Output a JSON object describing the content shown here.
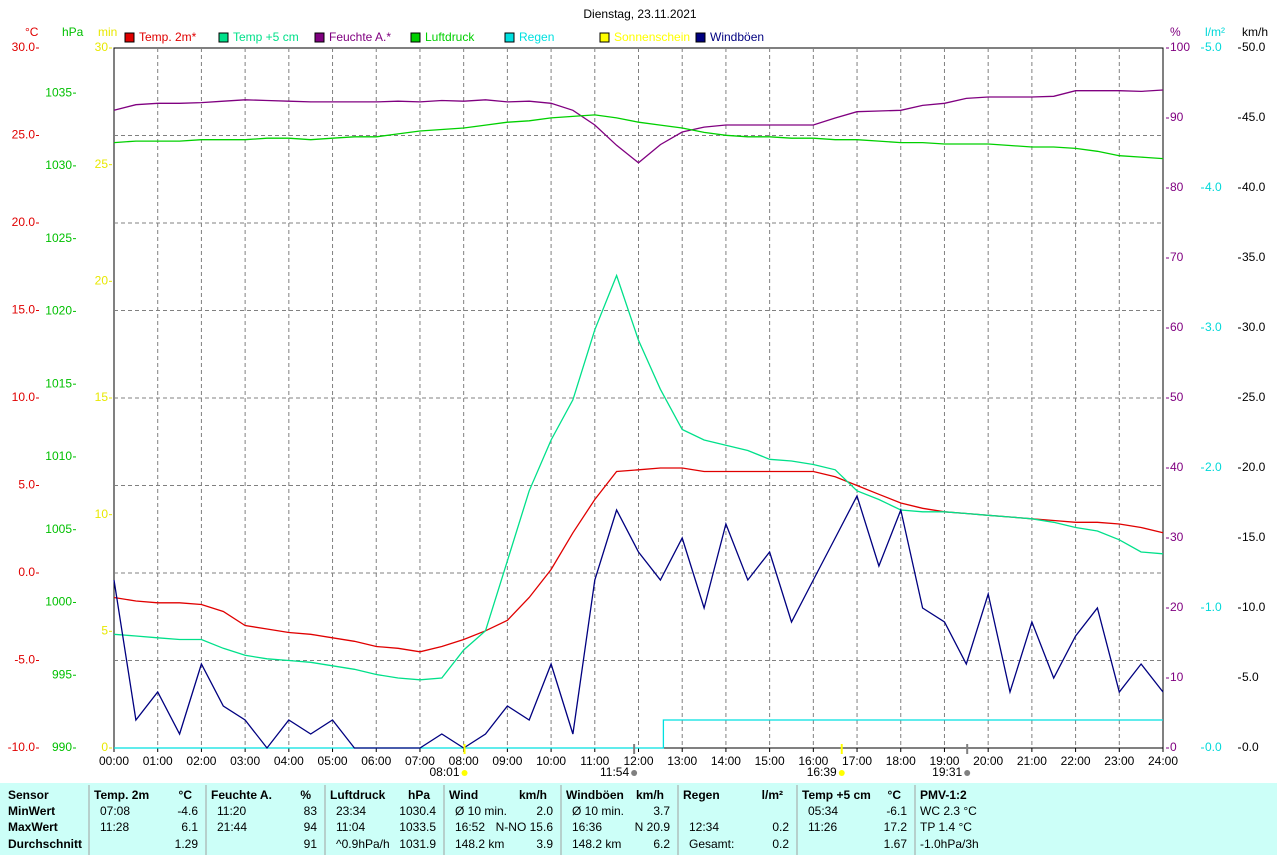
{
  "chart_data": {
    "type": "line",
    "title": "Dienstag, 23.11.2021",
    "x": [
      0,
      0.5,
      1,
      1.5,
      2,
      2.5,
      3,
      3.5,
      4,
      4.5,
      5,
      5.5,
      6,
      6.5,
      7,
      7.5,
      8,
      8.5,
      9,
      9.5,
      10,
      10.5,
      11,
      11.5,
      12,
      12.5,
      13,
      13.5,
      14,
      14.5,
      15,
      15.5,
      16,
      16.5,
      17,
      17.5,
      18,
      18.5,
      19,
      19.5,
      20,
      20.5,
      21,
      21.5,
      22,
      22.5,
      23,
      23.5,
      24
    ],
    "xlim": [
      0,
      24
    ],
    "xticks": [
      {
        "value": 0,
        "label": "00:00"
      },
      {
        "value": 1,
        "label": "01:00"
      },
      {
        "value": 2,
        "label": "02:00"
      },
      {
        "value": 3,
        "label": "03:00"
      },
      {
        "value": 4,
        "label": "04:00"
      },
      {
        "value": 5,
        "label": "05:00"
      },
      {
        "value": 6,
        "label": "06:00"
      },
      {
        "value": 7,
        "label": "07:00"
      },
      {
        "value": 8,
        "label": "08:00"
      },
      {
        "value": 9,
        "label": "09:00"
      },
      {
        "value": 10,
        "label": "10:00"
      },
      {
        "value": 11,
        "label": "11:00"
      },
      {
        "value": 12,
        "label": "12:00"
      },
      {
        "value": 13,
        "label": "13:00"
      },
      {
        "value": 14,
        "label": "14:00"
      },
      {
        "value": 15,
        "label": "15:00"
      },
      {
        "value": 16,
        "label": "16:00"
      },
      {
        "value": 17,
        "label": "17:00"
      },
      {
        "value": 18,
        "label": "18:00"
      },
      {
        "value": 19,
        "label": "19:00"
      },
      {
        "value": 20,
        "label": "20:00"
      },
      {
        "value": 21,
        "label": "21:00"
      },
      {
        "value": 22,
        "label": "22:00"
      },
      {
        "value": 23,
        "label": "23:00"
      },
      {
        "value": 24,
        "label": "24:00"
      }
    ],
    "grid": true,
    "y_axes": [
      {
        "unit": "°C",
        "side": "left",
        "color": "#e00000",
        "lim": [
          -10,
          30
        ],
        "ticks": [
          {
            "value": -10,
            "label": "-10.0"
          },
          {
            "value": -5,
            "label": "-5.0"
          },
          {
            "value": 0,
            "label": "0.0"
          },
          {
            "value": 5,
            "label": "5.0"
          },
          {
            "value": 10,
            "label": "10.0"
          },
          {
            "value": 15,
            "label": "15.0"
          },
          {
            "value": 20,
            "label": "20.0"
          },
          {
            "value": 25,
            "label": "25.0"
          },
          {
            "value": 30,
            "label": "30.0"
          }
        ]
      },
      {
        "unit": "hPa",
        "side": "left",
        "color": "#00c000",
        "lim": [
          990,
          1038.1
        ],
        "ticks": [
          990,
          995,
          1000,
          1005,
          1010,
          1015,
          1020,
          1025,
          1030,
          1035
        ]
      },
      {
        "unit": "min",
        "side": "left",
        "color": "#e8e800",
        "lim": [
          0,
          30
        ],
        "ticks": [
          0,
          5,
          10,
          15,
          20,
          25,
          30
        ]
      },
      {
        "unit": "%",
        "side": "right",
        "color": "#800080",
        "lim": [
          0,
          100
        ],
        "ticks": [
          0,
          10,
          20,
          30,
          40,
          50,
          60,
          70,
          80,
          90,
          100
        ]
      },
      {
        "unit": "l/m²",
        "side": "right",
        "color": "#00d8d8",
        "lim": [
          0,
          5
        ],
        "ticks": [
          {
            "value": 0,
            "label": "0.0"
          },
          {
            "value": 1,
            "label": "1.0"
          },
          {
            "value": 2,
            "label": "2.0"
          },
          {
            "value": 3,
            "label": "3.0"
          },
          {
            "value": 4,
            "label": "4.0"
          },
          {
            "value": 5,
            "label": "5.0"
          }
        ]
      },
      {
        "unit": "km/h",
        "side": "right",
        "color": "#000000",
        "lim": [
          0,
          50
        ],
        "ticks": [
          {
            "value": 0,
            "label": "0.0"
          },
          {
            "value": 5,
            "label": "5.0"
          },
          {
            "value": 10,
            "label": "10.0"
          },
          {
            "value": 15,
            "label": "15.0"
          },
          {
            "value": 20,
            "label": "20.0"
          },
          {
            "value": 25,
            "label": "25.0"
          },
          {
            "value": 30,
            "label": "30.0"
          },
          {
            "value": 35,
            "label": "35.0"
          },
          {
            "value": 40,
            "label": "40.0"
          },
          {
            "value": 45,
            "label": "45.0"
          },
          {
            "value": 50,
            "label": "50.0"
          }
        ]
      }
    ],
    "series": [
      {
        "name": "Temp. 2m*",
        "color": "#e00000",
        "axis": 0,
        "values": [
          -1.4,
          -1.6,
          -1.7,
          -1.7,
          -1.8,
          -2.2,
          -3.0,
          -3.2,
          -3.4,
          -3.5,
          -3.7,
          -3.9,
          -4.2,
          -4.3,
          -4.5,
          -4.2,
          -3.8,
          -3.3,
          -2.7,
          -1.4,
          0.2,
          2.3,
          4.2,
          5.8,
          5.9,
          6.0,
          6.0,
          5.8,
          5.8,
          5.8,
          5.8,
          5.8,
          5.8,
          5.5,
          5.0,
          4.5,
          4.0,
          3.7,
          3.5,
          3.4,
          3.3,
          3.2,
          3.1,
          3.0,
          2.9,
          2.9,
          2.8,
          2.6,
          2.3
        ]
      },
      {
        "name": "Temp +5 cm",
        "color": "#00e08a",
        "axis": 0,
        "values": [
          -3.5,
          -3.6,
          -3.7,
          -3.8,
          -3.8,
          -4.3,
          -4.7,
          -4.9,
          -5.0,
          -5.1,
          -5.3,
          -5.5,
          -5.8,
          -6.0,
          -6.1,
          -6.0,
          -4.4,
          -3.3,
          0.7,
          4.7,
          7.6,
          9.9,
          13.9,
          17.0,
          13.3,
          10.5,
          8.2,
          7.6,
          7.3,
          7.0,
          6.5,
          6.4,
          6.2,
          5.9,
          4.7,
          4.2,
          3.6,
          3.5,
          3.5,
          3.4,
          3.3,
          3.2,
          3.1,
          2.9,
          2.6,
          2.4,
          1.9,
          1.2,
          1.1
        ]
      },
      {
        "name": "Feuchte A.*",
        "color": "#800080",
        "axis": 3,
        "values": [
          91.1,
          91.9,
          92.1,
          92.1,
          92.2,
          92.4,
          92.6,
          92.5,
          92.4,
          92.3,
          92.3,
          92.3,
          92.3,
          92.4,
          92.3,
          92.5,
          92.4,
          92.6,
          92.3,
          92.4,
          92.1,
          91.1,
          89.0,
          86.1,
          83.6,
          86.2,
          88.0,
          88.7,
          89.0,
          89.0,
          89.0,
          89.0,
          89.0,
          90.0,
          90.9,
          91.0,
          91.1,
          91.8,
          92.1,
          92.8,
          93.0,
          93.0,
          93.0,
          93.1,
          93.9,
          93.9,
          93.9,
          93.8,
          94.0
        ]
      },
      {
        "name": "Luftdruck",
        "color": "#00d000",
        "axis": 1,
        "values": [
          1031.6,
          1031.7,
          1031.7,
          1031.7,
          1031.8,
          1031.8,
          1031.8,
          1031.9,
          1031.9,
          1031.8,
          1031.9,
          1032.0,
          1032.0,
          1032.2,
          1032.4,
          1032.5,
          1032.6,
          1032.8,
          1033.0,
          1033.1,
          1033.3,
          1033.4,
          1033.5,
          1033.3,
          1033.0,
          1032.8,
          1032.6,
          1032.3,
          1032.1,
          1032.0,
          1032.0,
          1031.9,
          1031.9,
          1031.8,
          1031.8,
          1031.7,
          1031.6,
          1031.6,
          1031.5,
          1031.5,
          1031.5,
          1031.4,
          1031.3,
          1031.3,
          1031.2,
          1031.0,
          1030.7,
          1030.6,
          1030.5
        ]
      },
      {
        "name": "Regen",
        "color": "#00e0e0",
        "axis": 4,
        "x": [
          0,
          12.57,
          12.57,
          24
        ],
        "values": [
          0,
          0,
          0.2,
          0.2
        ]
      },
      {
        "name": "Sonnenschein",
        "color": "#ffff00",
        "axis": 2
      },
      {
        "name": "Windböen",
        "color": "#000080",
        "axis": 5,
        "values": [
          12,
          2,
          4,
          1,
          6,
          3,
          2,
          0,
          2,
          1,
          2,
          0,
          0,
          0,
          0,
          1,
          0,
          1,
          3,
          2,
          6,
          1,
          12,
          17,
          14,
          12,
          15,
          10,
          16,
          12,
          14,
          9,
          12,
          15,
          18,
          13,
          17,
          10,
          9,
          6,
          11,
          4,
          9,
          5,
          8,
          10,
          4,
          6,
          4
        ]
      }
    ],
    "annotations": [
      {
        "x": 8.02,
        "label": "08:01",
        "color": "#ffff00"
      },
      {
        "x": 11.9,
        "label": "11:54",
        "color": "#808080"
      },
      {
        "x": 16.65,
        "label": "16:39",
        "color": "#ffff00"
      },
      {
        "x": 19.52,
        "label": "19:31",
        "color": "#808080"
      }
    ]
  },
  "table": {
    "row_labels": [
      "Sensor",
      "MinWert",
      "MaxWert",
      "Durchschnitt"
    ],
    "groups": [
      {
        "name": "Temp. 2m",
        "unit": "°C",
        "rows": [
          [
            "07:08",
            "-4.6"
          ],
          [
            "11:28",
            "6.1"
          ],
          [
            null,
            "1.29"
          ]
        ]
      },
      {
        "name": "Feuchte A.",
        "unit": "%",
        "rows": [
          [
            "11:20",
            "83"
          ],
          [
            "21:44",
            "94"
          ],
          [
            null,
            "91"
          ]
        ]
      },
      {
        "name": "Luftdruck",
        "unit": "hPa",
        "rows": [
          [
            "23:34",
            "1030.4"
          ],
          [
            "11:04",
            "1033.5"
          ],
          [
            "^0.9hPa/h",
            "1031.9"
          ]
        ]
      },
      {
        "name": "Wind",
        "unit": "km/h",
        "rows": [
          [
            "Ø 10 min.",
            "2.0"
          ],
          [
            "16:52",
            "N-NO 15.6"
          ],
          [
            "148.2 km",
            "3.9"
          ]
        ]
      },
      {
        "name": "Windböen",
        "unit": "km/h",
        "rows": [
          [
            "Ø 10 min.",
            "3.7"
          ],
          [
            "16:36",
            "N 20.9"
          ],
          [
            "148.2 km",
            "6.2"
          ]
        ]
      },
      {
        "name": "Regen",
        "unit": "l/m²",
        "rows": [
          [
            null,
            null
          ],
          [
            "12:34",
            "0.2"
          ],
          [
            "Gesamt:",
            "0.2"
          ]
        ]
      },
      {
        "name": "Temp +5 cm",
        "unit": "°C",
        "rows": [
          [
            "05:34",
            "-6.1"
          ],
          [
            "11:26",
            "17.2"
          ],
          [
            null,
            "1.67"
          ]
        ]
      },
      {
        "name": "PMV-1:2",
        "rows": [
          [
            "WC 2.3 °C"
          ],
          [
            "TP 1.4 °C"
          ],
          [
            "-1.0hPa/3h"
          ]
        ]
      }
    ]
  }
}
